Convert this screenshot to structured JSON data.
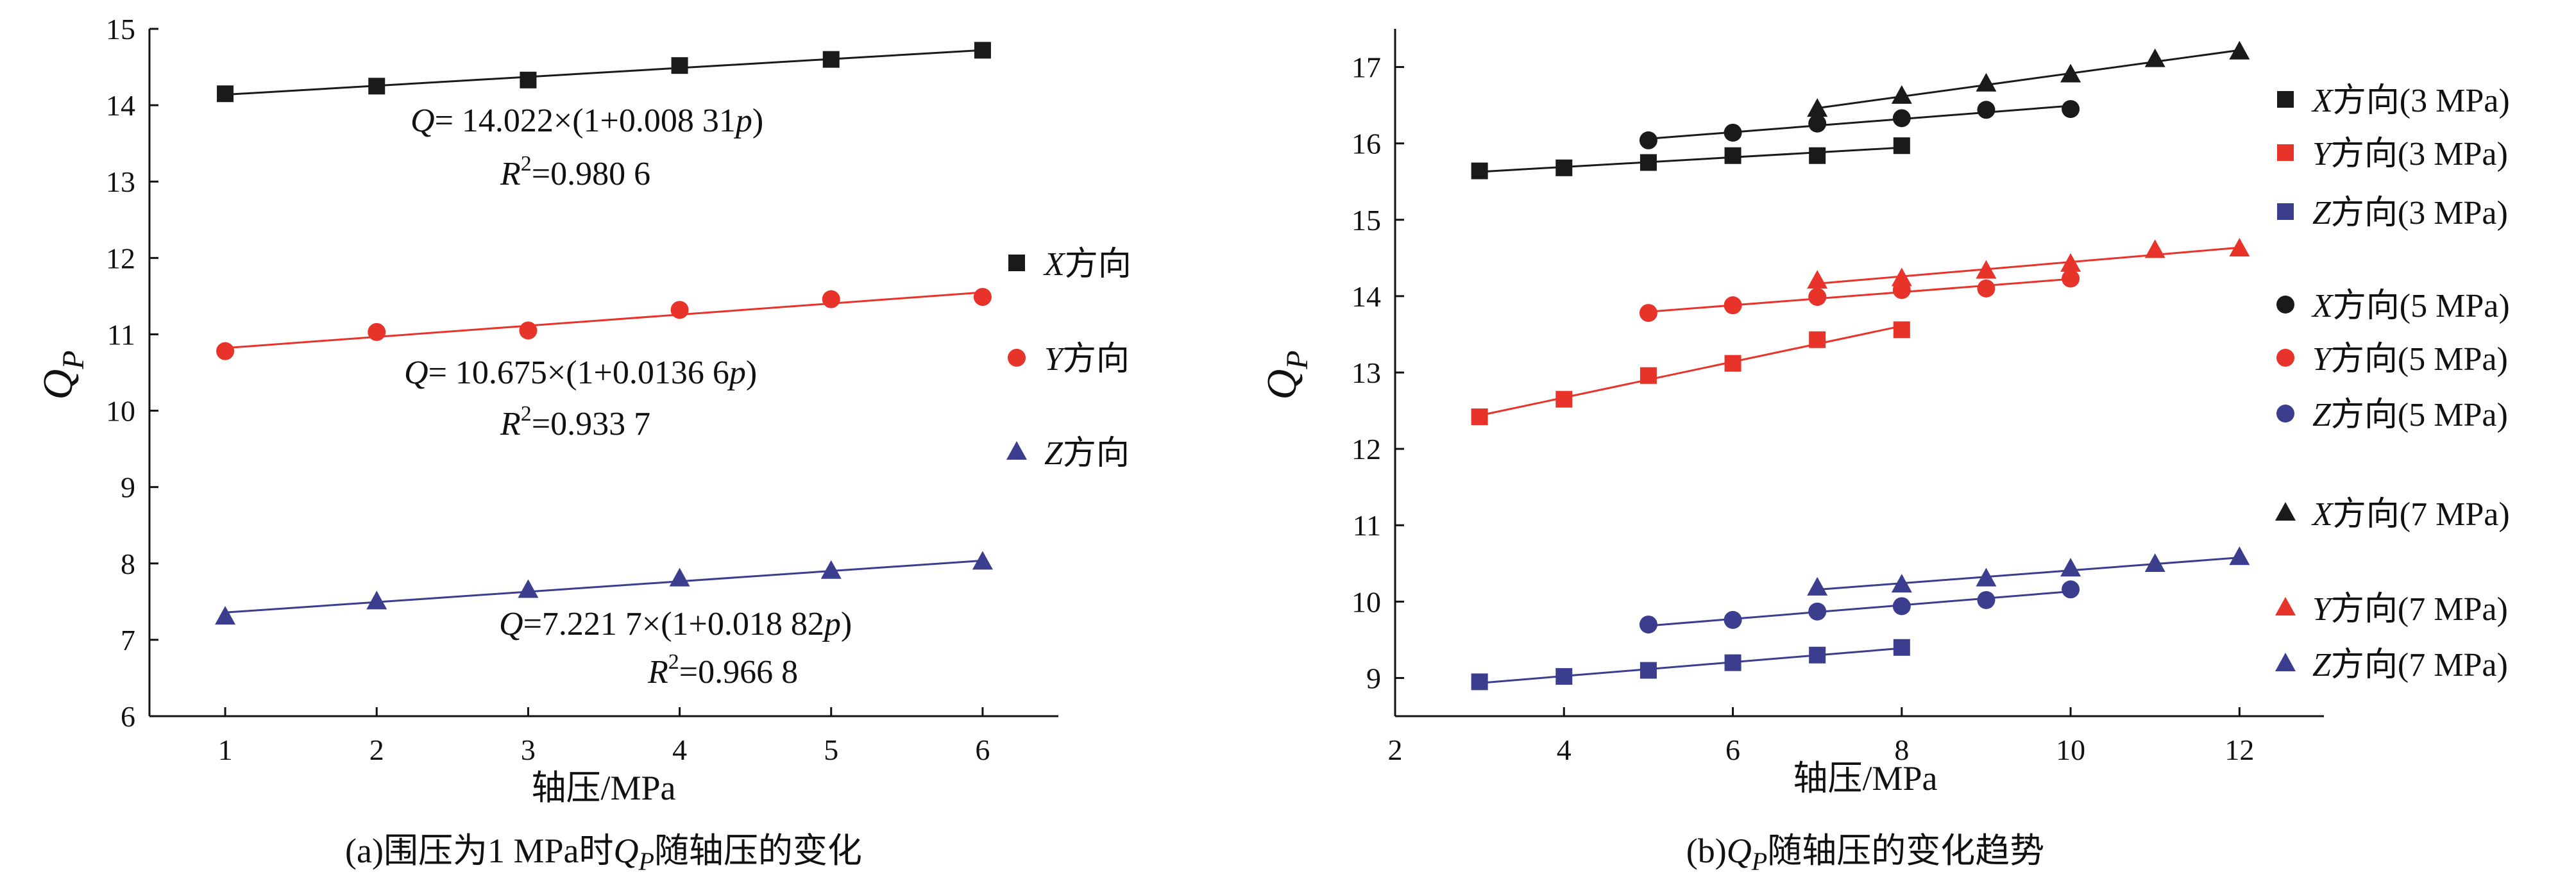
{
  "chart_data": [
    {
      "id": "a",
      "type": "scatter",
      "caption": "(a)围压为1 MPa时Qp随轴压的变化",
      "caption_parts": {
        "pre": "(a)围压为1 MPa时",
        "sym": "Q",
        "sub": "P",
        "post": "随轴压的变化"
      },
      "xlabel": "轴压/MPa",
      "ylabel": "Q",
      "ylabel_sub": "P",
      "xlim": [
        0.5,
        6.5
      ],
      "ylim": [
        6,
        15
      ],
      "xticks": [
        "1",
        "2",
        "3",
        "4",
        "5",
        "6"
      ],
      "yticks": [
        "6",
        "7",
        "8",
        "9",
        "10",
        "11",
        "12",
        "13",
        "14",
        "15"
      ],
      "series": [
        {
          "name": "X方向",
          "legend_italic": "X",
          "legend_text": "方向",
          "color": "#1a1a1a",
          "marker": "square",
          "x": [
            1,
            2,
            3,
            4,
            5,
            6
          ],
          "y": [
            14.15,
            14.25,
            14.33,
            14.52,
            14.6,
            14.72
          ],
          "fit": {
            "a": 14.022,
            "b": 0.00831
          },
          "eq_line1": "= 14.022×(1+0.008 31",
          "eq_line2": "=0.980 6"
        },
        {
          "name": "Y方向",
          "legend_italic": "Y",
          "legend_text": "方向",
          "color": "#e8332a",
          "marker": "circle",
          "x": [
            1,
            2,
            3,
            4,
            5,
            6
          ],
          "y": [
            10.78,
            11.03,
            11.05,
            11.32,
            11.46,
            11.49
          ],
          "fit": {
            "a": 10.675,
            "b": 0.01366
          },
          "eq_line1": "= 10.675×(1+0.0136 6",
          "eq_line2": "=0.933 7"
        },
        {
          "name": "Z方向",
          "legend_italic": "Z",
          "legend_text": "方向",
          "color": "#3b3d8f",
          "marker": "triangle",
          "x": [
            1,
            2,
            3,
            4,
            5,
            6
          ],
          "y": [
            7.3,
            7.5,
            7.65,
            7.8,
            7.9,
            8.02
          ],
          "fit": {
            "a": 7.2217,
            "b": 0.01882
          },
          "eq_line1": "=7.221 7×(1+0.018 82",
          "eq_line2": "=0.966 8"
        }
      ]
    },
    {
      "id": "b",
      "type": "scatter",
      "caption": "(b)Qp随轴压的变化趋势",
      "caption_parts": {
        "pre": "(b)",
        "sym": "Q",
        "sub": "P",
        "post": "随轴压的变化趋势"
      },
      "xlabel": "轴压/MPa",
      "ylabel": "Q",
      "ylabel_sub": "P",
      "xlim": [
        2,
        13
      ],
      "ylim": [
        8.5,
        17.5
      ],
      "xticks": [
        "2",
        "4",
        "6",
        "8",
        "10",
        "12"
      ],
      "yticks": [
        "9",
        "10",
        "11",
        "12",
        "13",
        "14",
        "15",
        "16",
        "17"
      ],
      "series": [
        {
          "name": "X方向(3 MPa)",
          "legend_italic": "X",
          "legend_text": "方向(3 MPa)",
          "color": "#1a1a1a",
          "marker": "square",
          "x": [
            3,
            4,
            5,
            6,
            7,
            8
          ],
          "y": [
            15.64,
            15.68,
            15.75,
            15.84,
            15.84,
            15.97
          ]
        },
        {
          "name": "Y方向(3 MPa)",
          "legend_italic": "Y",
          "legend_text": "方向(3 MPa)",
          "color": "#e8332a",
          "marker": "square",
          "x": [
            3,
            4,
            5,
            6,
            7,
            8
          ],
          "y": [
            12.42,
            12.65,
            12.96,
            13.12,
            13.43,
            13.56
          ]
        },
        {
          "name": "Z方向(3 MPa)",
          "legend_italic": "Z",
          "legend_text": "方向(3 MPa)",
          "color": "#3b3d8f",
          "marker": "square",
          "x": [
            3,
            4,
            5,
            6,
            7,
            8
          ],
          "y": [
            8.95,
            9.02,
            9.1,
            9.2,
            9.3,
            9.4
          ]
        },
        {
          "name": "X方向(5 MPa)",
          "legend_italic": "X",
          "legend_text": "方向(5 MPa)",
          "color": "#1a1a1a",
          "marker": "circle",
          "x": [
            5,
            6,
            7,
            8,
            9,
            10
          ],
          "y": [
            16.04,
            16.14,
            16.26,
            16.33,
            16.44,
            16.45
          ]
        },
        {
          "name": "Y方向(5 MPa)",
          "legend_italic": "Y",
          "legend_text": "方向(5 MPa)",
          "color": "#e8332a",
          "marker": "circle",
          "x": [
            5,
            6,
            7,
            8,
            9,
            10
          ],
          "y": [
            13.78,
            13.88,
            13.99,
            14.08,
            14.1,
            14.23
          ]
        },
        {
          "name": "Z方向(5 MPa)",
          "legend_italic": "Z",
          "legend_text": "方向(5 MPa)",
          "color": "#3b3d8f",
          "marker": "circle",
          "x": [
            5,
            6,
            7,
            8,
            9,
            10
          ],
          "y": [
            9.7,
            9.76,
            9.87,
            9.94,
            10.02,
            10.16
          ]
        },
        {
          "name": "X方向(7 MPa)",
          "legend_italic": "X",
          "legend_text": "方向(7 MPa)",
          "color": "#1a1a1a",
          "marker": "triangle",
          "x": [
            7,
            8,
            9,
            10,
            11,
            12
          ],
          "y": [
            16.45,
            16.62,
            16.78,
            16.9,
            17.1,
            17.2
          ]
        },
        {
          "name": "Y方向(7 MPa)",
          "legend_italic": "Y",
          "legend_text": "方向(7 MPa)",
          "color": "#e8332a",
          "marker": "triangle",
          "x": [
            7,
            8,
            9,
            10,
            11,
            12
          ],
          "y": [
            14.2,
            14.23,
            14.33,
            14.42,
            14.6,
            14.62
          ]
        },
        {
          "name": "Z方向(7 MPa)",
          "legend_italic": "Z",
          "legend_text": "方向(7 MPa)",
          "color": "#3b3d8f",
          "marker": "triangle",
          "x": [
            7,
            8,
            9,
            10,
            11,
            12
          ],
          "y": [
            10.18,
            10.22,
            10.3,
            10.43,
            10.49,
            10.58
          ]
        }
      ]
    }
  ]
}
